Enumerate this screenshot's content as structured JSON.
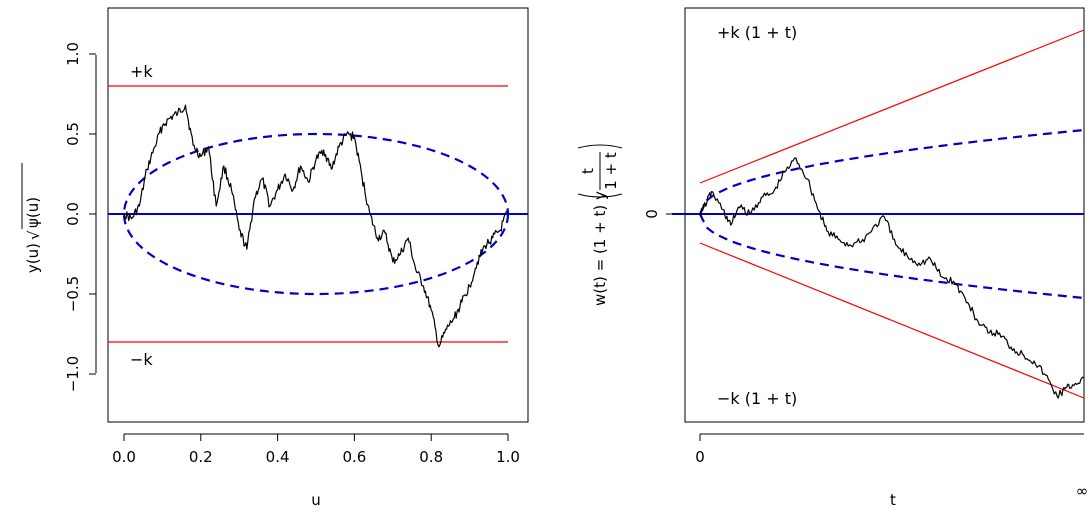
{
  "colors": {
    "path": "#000000",
    "boundary": "#ff0000",
    "envelope": "#0000cc",
    "zero_line": "#0000cc"
  },
  "chart_data": [
    {
      "type": "line",
      "xlabel": "u",
      "ylabel_main": "y(u)",
      "ylabel_radical": "√",
      "ylabel_radicand": "ψ(u)",
      "xlim": [
        0,
        1
      ],
      "ylim": [
        -1.3,
        1.3
      ],
      "xticks": [
        0.0,
        0.2,
        0.4,
        0.6,
        0.8,
        1.0
      ],
      "xtick_labels": [
        "0.0",
        "0.2",
        "0.4",
        "0.6",
        "0.8",
        "1.0"
      ],
      "yticks": [
        -1.0,
        -0.5,
        0.0,
        0.5,
        1.0
      ],
      "ytick_labels": [
        "−1.0",
        "−0.5",
        "0.0",
        "0.5",
        "1.0"
      ],
      "boundary_value": 0.8,
      "boundary_labels": {
        "upper": "+k",
        "lower": "−k"
      },
      "envelope": {
        "style": "dashed",
        "equation": "±sqrt(u(1−u))",
        "peak": 0.5
      },
      "zero_line": 0,
      "series": [
        {
          "style": "random-path",
          "x": [
            0.0,
            0.02,
            0.04,
            0.06,
            0.08,
            0.1,
            0.12,
            0.14,
            0.16,
            0.18,
            0.2,
            0.22,
            0.24,
            0.26,
            0.28,
            0.3,
            0.32,
            0.34,
            0.36,
            0.38,
            0.4,
            0.42,
            0.44,
            0.46,
            0.48,
            0.5,
            0.52,
            0.54,
            0.56,
            0.58,
            0.6,
            0.62,
            0.64,
            0.66,
            0.68,
            0.7,
            0.72,
            0.74,
            0.76,
            0.78,
            0.8,
            0.82,
            0.84,
            0.86,
            0.88,
            0.9,
            0.92,
            0.94,
            0.96,
            0.98,
            1.0
          ],
          "y": [
            0.0,
            -0.03,
            0.05,
            0.28,
            0.42,
            0.55,
            0.6,
            0.63,
            0.68,
            0.43,
            0.36,
            0.42,
            0.05,
            0.3,
            0.15,
            -0.1,
            -0.22,
            0.1,
            0.22,
            0.05,
            0.15,
            0.25,
            0.15,
            0.3,
            0.2,
            0.34,
            0.4,
            0.28,
            0.42,
            0.5,
            0.48,
            0.23,
            0.0,
            -0.15,
            -0.12,
            -0.3,
            -0.25,
            -0.15,
            -0.35,
            -0.45,
            -0.6,
            -0.83,
            -0.72,
            -0.65,
            -0.55,
            -0.45,
            -0.3,
            -0.2,
            -0.15,
            -0.1,
            0.02
          ]
        }
      ]
    },
    {
      "type": "line",
      "xlabel": "t",
      "ylabel_main": "w(t) = (1 + t) y",
      "ylabel_frac_num": "t",
      "ylabel_frac_den": "1 + t",
      "xtick_labels": [
        "0",
        "∞"
      ],
      "ytick_labels": [
        "0"
      ],
      "boundary_labels": {
        "upper": "+k (1 + t)",
        "lower": "−k (1 + t)"
      },
      "envelope": {
        "style": "dashed"
      },
      "zero_line": 0,
      "series": [
        {
          "style": "random-path",
          "x": [
            0.0,
            0.01,
            0.03,
            0.06,
            0.08,
            0.1,
            0.13,
            0.16,
            0.19,
            0.22,
            0.25,
            0.28,
            0.31,
            0.33,
            0.36,
            0.39,
            0.42,
            0.45,
            0.48,
            0.51,
            0.54,
            0.57,
            0.6,
            0.63,
            0.66,
            0.69,
            0.72,
            0.75,
            0.78,
            0.81,
            0.84,
            0.87,
            0.9,
            0.93,
            0.95,
            0.97,
            1.0
          ],
          "y": [
            0.0,
            0.05,
            0.16,
            0.03,
            -0.08,
            0.05,
            0.0,
            0.12,
            0.15,
            0.3,
            0.4,
            0.25,
            0.02,
            -0.12,
            -0.18,
            -0.22,
            -0.2,
            -0.1,
            -0.02,
            -0.22,
            -0.3,
            -0.35,
            -0.32,
            -0.45,
            -0.48,
            -0.6,
            -0.75,
            -0.85,
            -0.85,
            -0.95,
            -1.0,
            -1.05,
            -1.15,
            -1.3,
            -1.25,
            -1.22,
            -1.17
          ]
        }
      ]
    }
  ]
}
